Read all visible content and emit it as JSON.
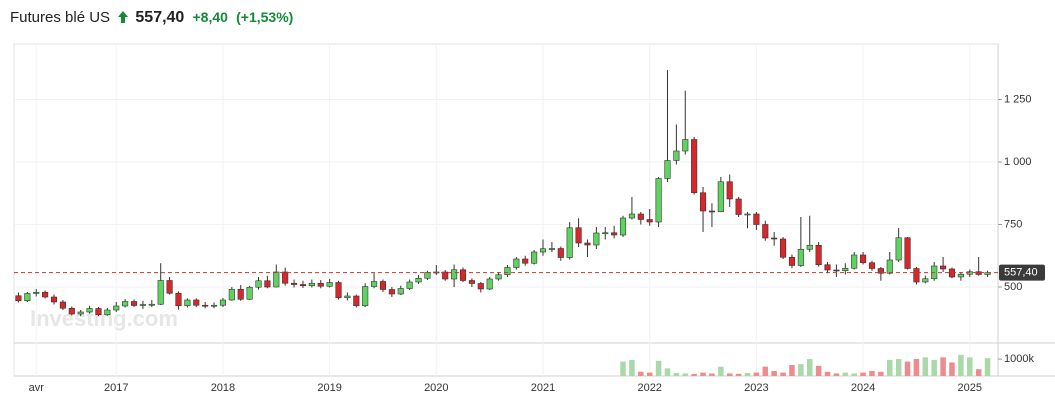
{
  "header": {
    "title": "Futures blé US",
    "price": "557,40",
    "change": "+8,40",
    "change_pct": "(+1,53%)"
  },
  "watermark": "Investing.com",
  "chart_data": {
    "type": "candlestick",
    "categories": [
      null,
      null,
      "avr",
      null,
      null,
      null,
      null,
      null,
      null,
      null,
      null,
      "2017",
      null,
      null,
      null,
      null,
      null,
      null,
      null,
      null,
      null,
      null,
      null,
      "2018",
      null,
      null,
      null,
      null,
      null,
      null,
      null,
      null,
      null,
      null,
      null,
      "2019",
      null,
      null,
      null,
      null,
      null,
      null,
      null,
      null,
      null,
      null,
      null,
      "2020",
      null,
      null,
      null,
      null,
      null,
      null,
      null,
      null,
      null,
      null,
      null,
      "2021",
      null,
      null,
      null,
      null,
      null,
      null,
      null,
      null,
      null,
      null,
      null,
      "2022",
      null,
      null,
      null,
      null,
      null,
      null,
      null,
      null,
      null,
      null,
      null,
      "2023",
      null,
      null,
      null,
      null,
      null,
      null,
      null,
      null,
      null,
      null,
      null,
      "2024",
      null,
      null,
      null,
      null,
      null,
      null,
      null,
      null,
      null,
      null,
      null,
      "2025",
      null,
      null
    ],
    "open": [
      465,
      445,
      474,
      479,
      460,
      440,
      415,
      392,
      400,
      414,
      389,
      408,
      424,
      442,
      426,
      430,
      431,
      526,
      475,
      425,
      448,
      427,
      423,
      427,
      448,
      491,
      451,
      499,
      525,
      500,
      560,
      515,
      510,
      505,
      515,
      503,
      518,
      457,
      464,
      425,
      502,
      522,
      490,
      472,
      494,
      520,
      535,
      558,
      560,
      532,
      569,
      526,
      514,
      492,
      532,
      549,
      578,
      612,
      595,
      640,
      653,
      654,
      618,
      737,
      676,
      668,
      716,
      717,
      708,
      776,
      792,
      770,
      760,
      934,
      1006,
      1044,
      1090,
      877,
      804,
      801,
      921,
      852,
      790,
      792,
      750,
      696,
      692,
      619,
      586,
      651,
      667,
      589,
      568,
      565,
      575,
      628,
      597,
      574,
      555,
      608,
      697,
      574,
      520,
      533,
      584,
      572,
      540,
      551,
      561,
      550
    ],
    "high": [
      478,
      480,
      492,
      486,
      470,
      448,
      422,
      408,
      425,
      420,
      416,
      440,
      452,
      450,
      445,
      448,
      595,
      540,
      482,
      455,
      455,
      440,
      438,
      456,
      500,
      508,
      505,
      540,
      545,
      590,
      578,
      530,
      525,
      530,
      528,
      532,
      525,
      478,
      470,
      515,
      555,
      530,
      500,
      505,
      530,
      548,
      565,
      588,
      568,
      590,
      578,
      535,
      520,
      540,
      560,
      588,
      620,
      625,
      648,
      690,
      680,
      662,
      760,
      775,
      690,
      740,
      740,
      745,
      785,
      860,
      800,
      812,
      940,
      1368,
      1150,
      1285,
      1100,
      900,
      835,
      940,
      950,
      860,
      800,
      800,
      765,
      720,
      700,
      630,
      780,
      785,
      680,
      600,
      590,
      595,
      640,
      640,
      605,
      580,
      640,
      736,
      700,
      580,
      545,
      600,
      620,
      578,
      560,
      570,
      620,
      565
    ],
    "low": [
      438,
      440,
      462,
      455,
      430,
      408,
      386,
      383,
      394,
      383,
      385,
      400,
      418,
      420,
      412,
      420,
      428,
      470,
      410,
      418,
      420,
      415,
      415,
      420,
      445,
      445,
      448,
      490,
      495,
      498,
      505,
      498,
      496,
      498,
      495,
      498,
      450,
      446,
      418,
      420,
      495,
      480,
      460,
      468,
      488,
      512,
      528,
      548,
      525,
      500,
      520,
      500,
      478,
      488,
      525,
      540,
      570,
      585,
      590,
      625,
      640,
      605,
      610,
      660,
      620,
      652,
      690,
      695,
      700,
      770,
      750,
      745,
      740,
      920,
      990,
      1030,
      870,
      720,
      740,
      800,
      820,
      780,
      735,
      728,
      685,
      665,
      612,
      575,
      580,
      640,
      582,
      555,
      540,
      550,
      570,
      590,
      565,
      525,
      550,
      600,
      570,
      510,
      515,
      525,
      560,
      535,
      525,
      540,
      545,
      540
    ],
    "close": [
      445,
      474,
      479,
      460,
      440,
      415,
      392,
      400,
      414,
      389,
      408,
      424,
      442,
      426,
      430,
      431,
      526,
      475,
      425,
      448,
      427,
      423,
      427,
      448,
      491,
      451,
      499,
      525,
      500,
      560,
      515,
      510,
      505,
      515,
      503,
      518,
      457,
      464,
      425,
      502,
      522,
      490,
      472,
      494,
      520,
      535,
      558,
      560,
      532,
      569,
      526,
      514,
      492,
      532,
      549,
      578,
      612,
      595,
      640,
      653,
      654,
      618,
      737,
      676,
      668,
      716,
      717,
      708,
      776,
      792,
      770,
      760,
      934,
      1006,
      1044,
      1090,
      877,
      804,
      801,
      921,
      852,
      790,
      792,
      750,
      696,
      692,
      619,
      586,
      651,
      667,
      589,
      568,
      565,
      575,
      628,
      597,
      574,
      555,
      608,
      697,
      574,
      520,
      533,
      584,
      572,
      540,
      551,
      561,
      550,
      557.4
    ],
    "volume": [
      null,
      null,
      null,
      null,
      null,
      null,
      null,
      null,
      null,
      null,
      null,
      null,
      null,
      null,
      null,
      null,
      null,
      null,
      null,
      null,
      null,
      null,
      null,
      null,
      null,
      null,
      null,
      null,
      null,
      null,
      null,
      null,
      null,
      null,
      null,
      null,
      null,
      null,
      null,
      null,
      null,
      null,
      null,
      null,
      null,
      null,
      null,
      null,
      null,
      null,
      null,
      null,
      null,
      null,
      null,
      null,
      null,
      null,
      null,
      null,
      null,
      null,
      null,
      null,
      null,
      null,
      null,
      null,
      850000,
      950000,
      250000,
      200000,
      900000,
      450000,
      180000,
      150000,
      120000,
      200000,
      150000,
      550000,
      150000,
      130000,
      180000,
      200000,
      550000,
      300000,
      200000,
      650000,
      700000,
      1000000,
      600000,
      250000,
      150000,
      200000,
      150000,
      200000,
      300000,
      250000,
      950000,
      1000000,
      850000,
      1000000,
      1100000,
      950000,
      1100000,
      800000,
      1250000,
      1100000,
      400000,
      1050000
    ],
    "ylim": [
      288,
      1468
    ],
    "yticks": [
      500,
      750,
      {
        "value": 1000,
        "label": "1 000"
      },
      {
        "value": 1250,
        "label": "1 250"
      }
    ],
    "volume_ylim": [
      0,
      1830000
    ],
    "volume_ticks": [
      {
        "value": 1000000,
        "label": "1000k"
      }
    ],
    "last_value": 557.4,
    "up_color": "#5fd35f",
    "down_color": "#d8262b",
    "volume_up_color": "#a9d9a9",
    "volume_down_color": "#ec8c8e",
    "grid": true
  }
}
